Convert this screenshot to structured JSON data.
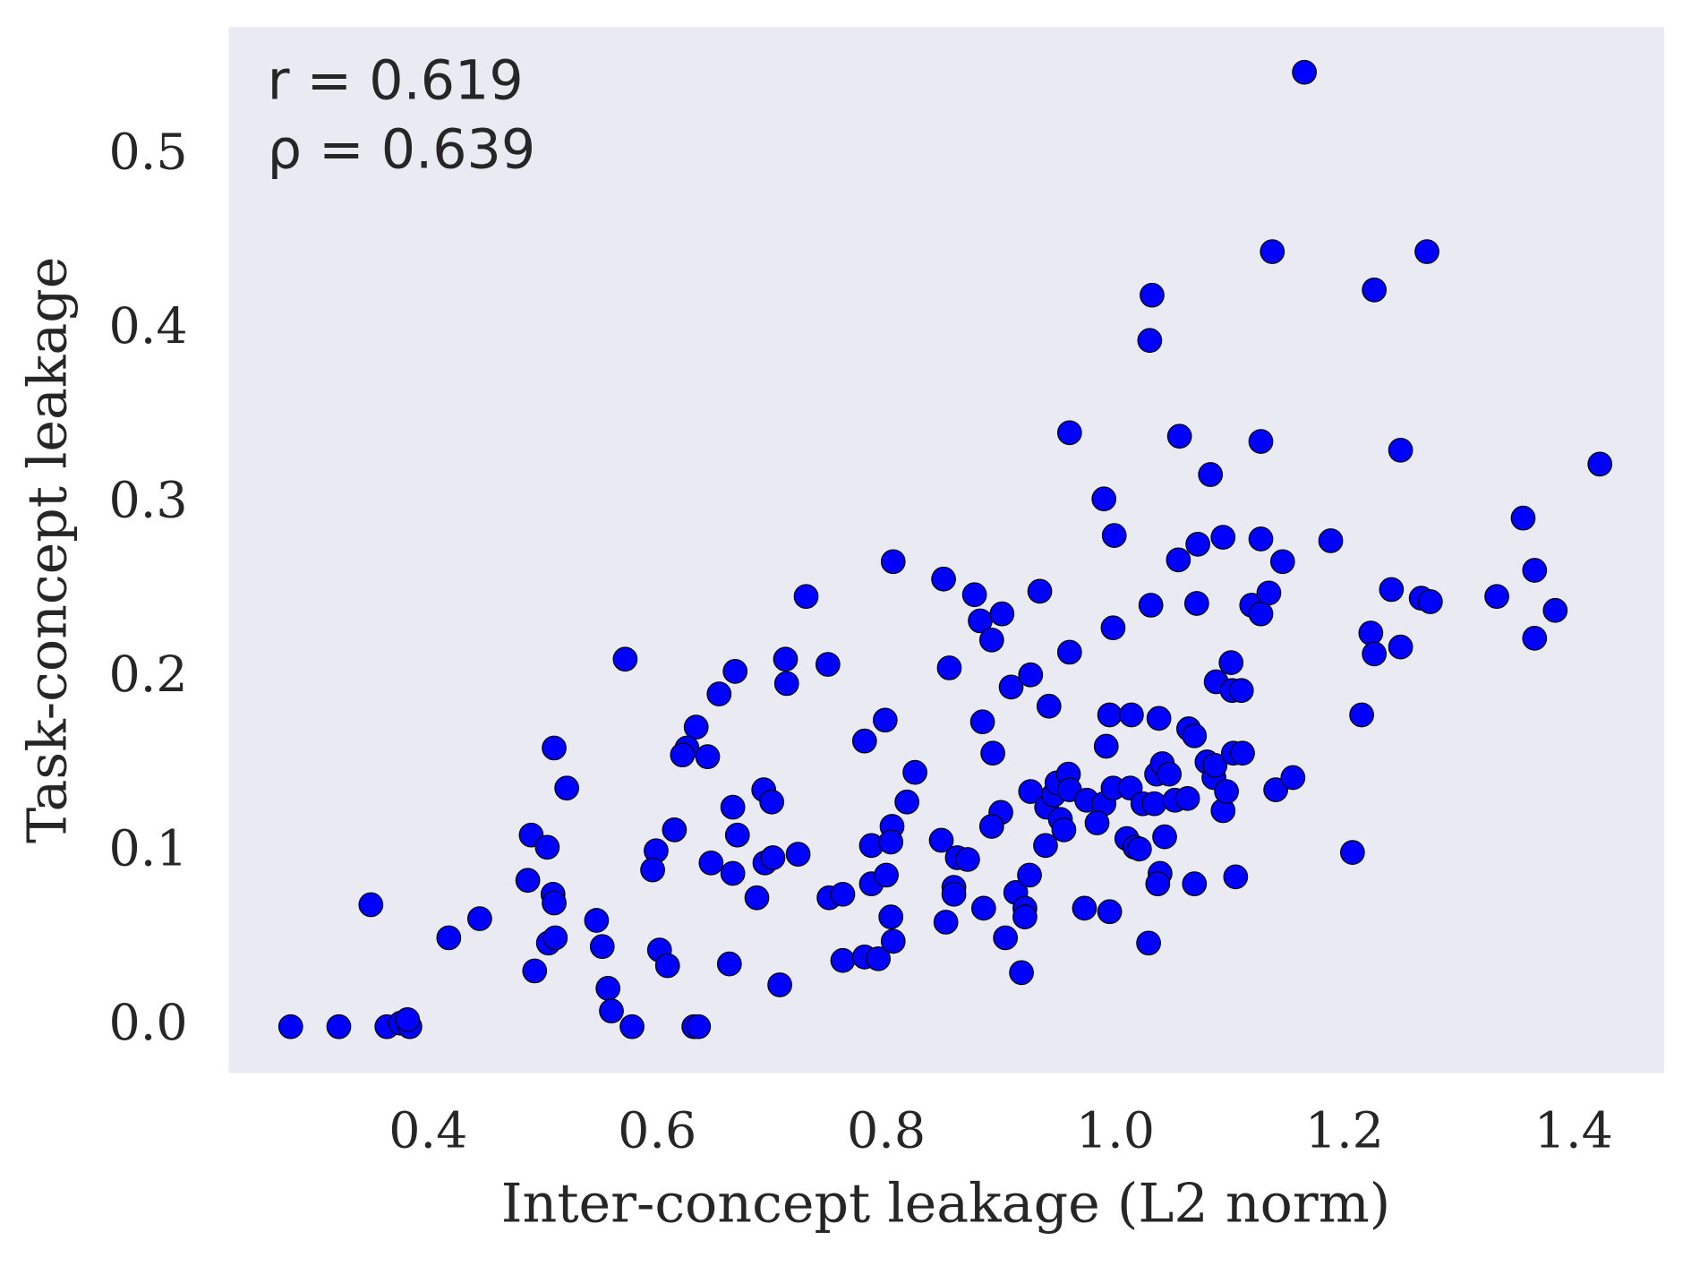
{
  "chart_data": {
    "type": "scatter",
    "xlabel": "Inter-concept leakage (L2 norm)",
    "ylabel": "Task-concept leakage",
    "annotations": [
      "r = 0.619",
      "ρ = 0.639"
    ],
    "xlim": [
      0.2258,
      1.479
    ],
    "ylim": [
      -0.0266,
      0.574
    ],
    "xticks": [
      0.4,
      0.6,
      0.8,
      {
        "value": 1,
        "label": "1.0"
      },
      1.2,
      1.4
    ],
    "yticks": [
      {
        "value": 0,
        "label": "0.0"
      },
      0.1,
      0.2,
      0.3,
      0.4,
      0.5
    ],
    "grid": false,
    "color": "#0000ff",
    "edgecolor": "#000000",
    "background": "#eaeaf2",
    "x": [
      0.28,
      0.322,
      0.364,
      0.376,
      0.384,
      0.382,
      0.35,
      0.418,
      0.445,
      0.49,
      0.504,
      0.51,
      0.521,
      0.487,
      0.509,
      0.51,
      0.493,
      0.505,
      0.511,
      0.547,
      0.552,
      0.557,
      0.56,
      0.578,
      0.572,
      0.599,
      0.596,
      0.615,
      0.602,
      0.609,
      0.632,
      0.636,
      0.634,
      0.626,
      0.622,
      0.644,
      0.654,
      0.668,
      0.647,
      0.666,
      0.67,
      0.666,
      0.663,
      0.693,
      0.7,
      0.694,
      0.701,
      0.687,
      0.723,
      0.707,
      0.712,
      0.713,
      0.73,
      0.749,
      0.75,
      0.762,
      0.762,
      0.781,
      0.793,
      0.781,
      0.799,
      0.806,
      0.787,
      0.805,
      0.804,
      0.787,
      0.8,
      0.804,
      0.806,
      0.818,
      0.825,
      0.85,
      0.855,
      0.848,
      0.852,
      0.859,
      0.859,
      0.862,
      0.871,
      0.877,
      0.882,
      0.901,
      0.892,
      0.884,
      0.893,
      0.9,
      0.892,
      0.885,
      0.904,
      0.918,
      0.909,
      0.926,
      0.934,
      0.942,
      0.96,
      0.96,
      0.926,
      0.913,
      0.921,
      0.921,
      0.925,
      0.939,
      0.94,
      0.946,
      0.952,
      0.955,
      0.949,
      0.959,
      0.96,
      0.973,
      0.975,
      0.99,
      0.984,
      0.99,
      0.999,
      0.998,
      0.995,
      0.992,
      0.998,
      0.995,
      1.014,
      1.013,
      1.01,
      1.017,
      1.021,
      1.024,
      1.032,
      1.03,
      1.031,
      1.038,
      1.036,
      1.041,
      1.047,
      1.034,
      1.043,
      1.039,
      1.037,
      1.029,
      1.056,
      1.055,
      1.052,
      1.063,
      1.069,
      1.071,
      1.072,
      1.083,
      1.064,
      1.069,
      1.08,
      1.086,
      1.087,
      1.088,
      1.094,
      1.094,
      1.097,
      1.101,
      1.102,
      1.11,
      1.103,
      1.111,
      1.105,
      1.127,
      1.127,
      1.119,
      1.127,
      1.134,
      1.146,
      1.137,
      1.14,
      1.155,
      1.165,
      1.188,
      1.207,
      1.215,
      1.223,
      1.226,
      1.226,
      1.241,
      1.249,
      1.249,
      1.267,
      1.275,
      1.272,
      1.333,
      1.356,
      1.366,
      1.366,
      1.384,
      1.423
    ],
    "values": [
      0,
      0,
      0,
      0.002,
      0,
      0.004,
      0.07,
      0.051,
      0.062,
      0.11,
      0.103,
      0.16,
      0.137,
      0.084,
      0.076,
      0.071,
      0.032,
      0.048,
      0.051,
      0.061,
      0.046,
      0.022,
      0.009,
      0,
      0.211,
      0.101,
      0.09,
      0.113,
      0.044,
      0.035,
      0,
      0,
      0.172,
      0.16,
      0.156,
      0.155,
      0.191,
      0.204,
      0.094,
      0.126,
      0.11,
      0.088,
      0.036,
      0.136,
      0.129,
      0.094,
      0.097,
      0.074,
      0.099,
      0.024,
      0.211,
      0.197,
      0.247,
      0.208,
      0.074,
      0.076,
      0.038,
      0.04,
      0.039,
      0.164,
      0.176,
      0.267,
      0.104,
      0.115,
      0.106,
      0.082,
      0.087,
      0.063,
      0.049,
      0.129,
      0.146,
      0.257,
      0.206,
      0.107,
      0.06,
      0.08,
      0.076,
      0.097,
      0.096,
      0.248,
      0.233,
      0.237,
      0.222,
      0.175,
      0.157,
      0.123,
      0.115,
      0.068,
      0.051,
      0.031,
      0.195,
      0.202,
      0.25,
      0.184,
      0.341,
      0.215,
      0.135,
      0.077,
      0.068,
      0.063,
      0.087,
      0.104,
      0.126,
      0.133,
      0.119,
      0.113,
      0.14,
      0.145,
      0.136,
      0.068,
      0.13,
      0.128,
      0.117,
      0.303,
      0.282,
      0.229,
      0.179,
      0.161,
      0.137,
      0.066,
      0.179,
      0.137,
      0.108,
      0.103,
      0.102,
      0.128,
      0.42,
      0.394,
      0.242,
      0.177,
      0.145,
      0.151,
      0.145,
      0.128,
      0.109,
      0.088,
      0.082,
      0.048,
      0.339,
      0.268,
      0.13,
      0.131,
      0.082,
      0.243,
      0.277,
      0.317,
      0.171,
      0.167,
      0.152,
      0.143,
      0.15,
      0.198,
      0.281,
      0.124,
      0.135,
      0.209,
      0.193,
      0.193,
      0.157,
      0.157,
      0.086,
      0.336,
      0.28,
      0.242,
      0.237,
      0.249,
      0.267,
      0.445,
      0.136,
      0.143,
      0.548,
      0.279,
      0.1,
      0.179,
      0.226,
      0.214,
      0.423,
      0.251,
      0.218,
      0.331,
      0.246,
      0.244,
      0.445,
      0.247,
      0.292,
      0.262,
      0.223,
      0.239,
      0.323
    ]
  }
}
